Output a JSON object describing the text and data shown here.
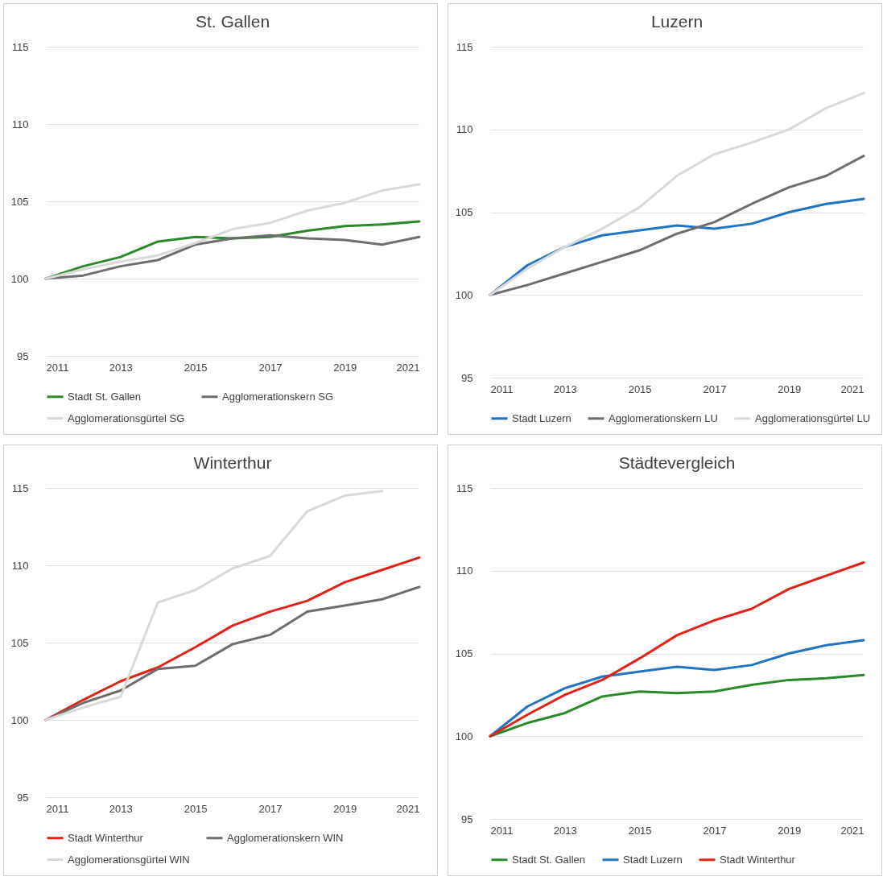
{
  "chart_data": [
    {
      "type": "line",
      "title": "St. Gallen",
      "x": [
        2011,
        2012,
        2013,
        2014,
        2015,
        2016,
        2017,
        2018,
        2019,
        2020,
        2021
      ],
      "xlim": [
        2011,
        2021
      ],
      "xticks": [
        2011,
        2013,
        2015,
        2017,
        2019,
        2021
      ],
      "ylim": [
        95,
        115
      ],
      "yticks": [
        95,
        100,
        105,
        110,
        115
      ],
      "grid": "y",
      "legend": "bottom",
      "series": [
        {
          "name": "Stadt St. Gallen",
          "color": "#2a8a2a",
          "values": [
            100,
            100.8,
            101.4,
            102.4,
            102.7,
            102.6,
            102.7,
            103.1,
            103.4,
            103.5,
            103.7
          ]
        },
        {
          "name": "Agglomerationskern SG",
          "color": "#6e6e6e",
          "values": [
            100,
            100.2,
            100.8,
            101.2,
            102.2,
            102.6,
            102.8,
            102.6,
            102.5,
            102.2,
            102.7
          ]
        },
        {
          "name": "Agglomerationsgürtel SG",
          "color": "#d9d9d9",
          "values": [
            100,
            100.6,
            101.1,
            101.5,
            102.3,
            103.2,
            103.6,
            104.4,
            104.9,
            105.7,
            106.1
          ]
        }
      ]
    },
    {
      "type": "line",
      "title": "Luzern",
      "x": [
        2011,
        2012,
        2013,
        2014,
        2015,
        2016,
        2017,
        2018,
        2019,
        2020,
        2021
      ],
      "xlim": [
        2011,
        2021
      ],
      "xticks": [
        2011,
        2013,
        2015,
        2017,
        2019,
        2021
      ],
      "ylim": [
        95,
        115
      ],
      "yticks": [
        95,
        100,
        105,
        110,
        115
      ],
      "grid": "y",
      "legend": "bottom",
      "series": [
        {
          "name": "Stadt Luzern",
          "color": "#1f74c4",
          "values": [
            100,
            101.8,
            102.9,
            103.6,
            103.9,
            104.2,
            104.0,
            104.3,
            105.0,
            105.5,
            105.8
          ]
        },
        {
          "name": "Agglomerationskern LU",
          "color": "#6e6e6e",
          "values": [
            100,
            100.6,
            101.3,
            102.0,
            102.7,
            103.7,
            104.4,
            105.5,
            106.5,
            107.2,
            108.4
          ]
        },
        {
          "name": "Agglomerationsgürtel LU",
          "color": "#d9d9d9",
          "values": [
            100,
            101.6,
            102.9,
            104.0,
            105.3,
            107.2,
            108.5,
            109.2,
            110.0,
            111.3,
            112.2
          ]
        }
      ]
    },
    {
      "type": "line",
      "title": "Winterthur",
      "x": [
        2011,
        2012,
        2013,
        2014,
        2015,
        2016,
        2017,
        2018,
        2019,
        2020,
        2021
      ],
      "xlim": [
        2011,
        2021
      ],
      "xticks": [
        2011,
        2013,
        2015,
        2017,
        2019,
        2021
      ],
      "ylim": [
        95,
        115
      ],
      "yticks": [
        95,
        100,
        105,
        110,
        115
      ],
      "grid": "y",
      "legend": "bottom",
      "series": [
        {
          "name": "Stadt Winterthur",
          "color": "#e32119",
          "values": [
            100,
            101.3,
            102.5,
            103.4,
            104.7,
            106.1,
            107.0,
            107.7,
            108.9,
            109.7,
            110.5
          ]
        },
        {
          "name": "Agglomerationskern WIN",
          "color": "#6e6e6e",
          "values": [
            100,
            101.1,
            101.9,
            103.3,
            103.5,
            104.9,
            105.5,
            107.0,
            107.4,
            107.8,
            108.6
          ]
        },
        {
          "name": "Agglomerationsgürtel WIN",
          "color": "#d9d9d9",
          "values": [
            100,
            100.8,
            101.5,
            107.6,
            108.4,
            109.8,
            110.6,
            113.5,
            114.5,
            114.8,
            null
          ]
        }
      ]
    },
    {
      "type": "line",
      "title": "Städtevergleich",
      "x": [
        2011,
        2012,
        2013,
        2014,
        2015,
        2016,
        2017,
        2018,
        2019,
        2020,
        2021
      ],
      "xlim": [
        2011,
        2021
      ],
      "xticks": [
        2011,
        2013,
        2015,
        2017,
        2019,
        2021
      ],
      "ylim": [
        95,
        115
      ],
      "yticks": [
        95,
        100,
        105,
        110,
        115
      ],
      "grid": "y",
      "legend": "bottom",
      "series": [
        {
          "name": "Stadt St. Gallen",
          "color": "#2a8a2a",
          "values": [
            100,
            100.8,
            101.4,
            102.4,
            102.7,
            102.6,
            102.7,
            103.1,
            103.4,
            103.5,
            103.7
          ]
        },
        {
          "name": "Stadt Luzern",
          "color": "#1f74c4",
          "values": [
            100,
            101.8,
            102.9,
            103.6,
            103.9,
            104.2,
            104.0,
            104.3,
            105.0,
            105.5,
            105.8
          ]
        },
        {
          "name": "Stadt Winterthur",
          "color": "#e32119",
          "values": [
            100,
            101.3,
            102.5,
            103.4,
            104.7,
            106.1,
            107.0,
            107.7,
            108.9,
            109.7,
            110.5
          ]
        }
      ]
    }
  ]
}
